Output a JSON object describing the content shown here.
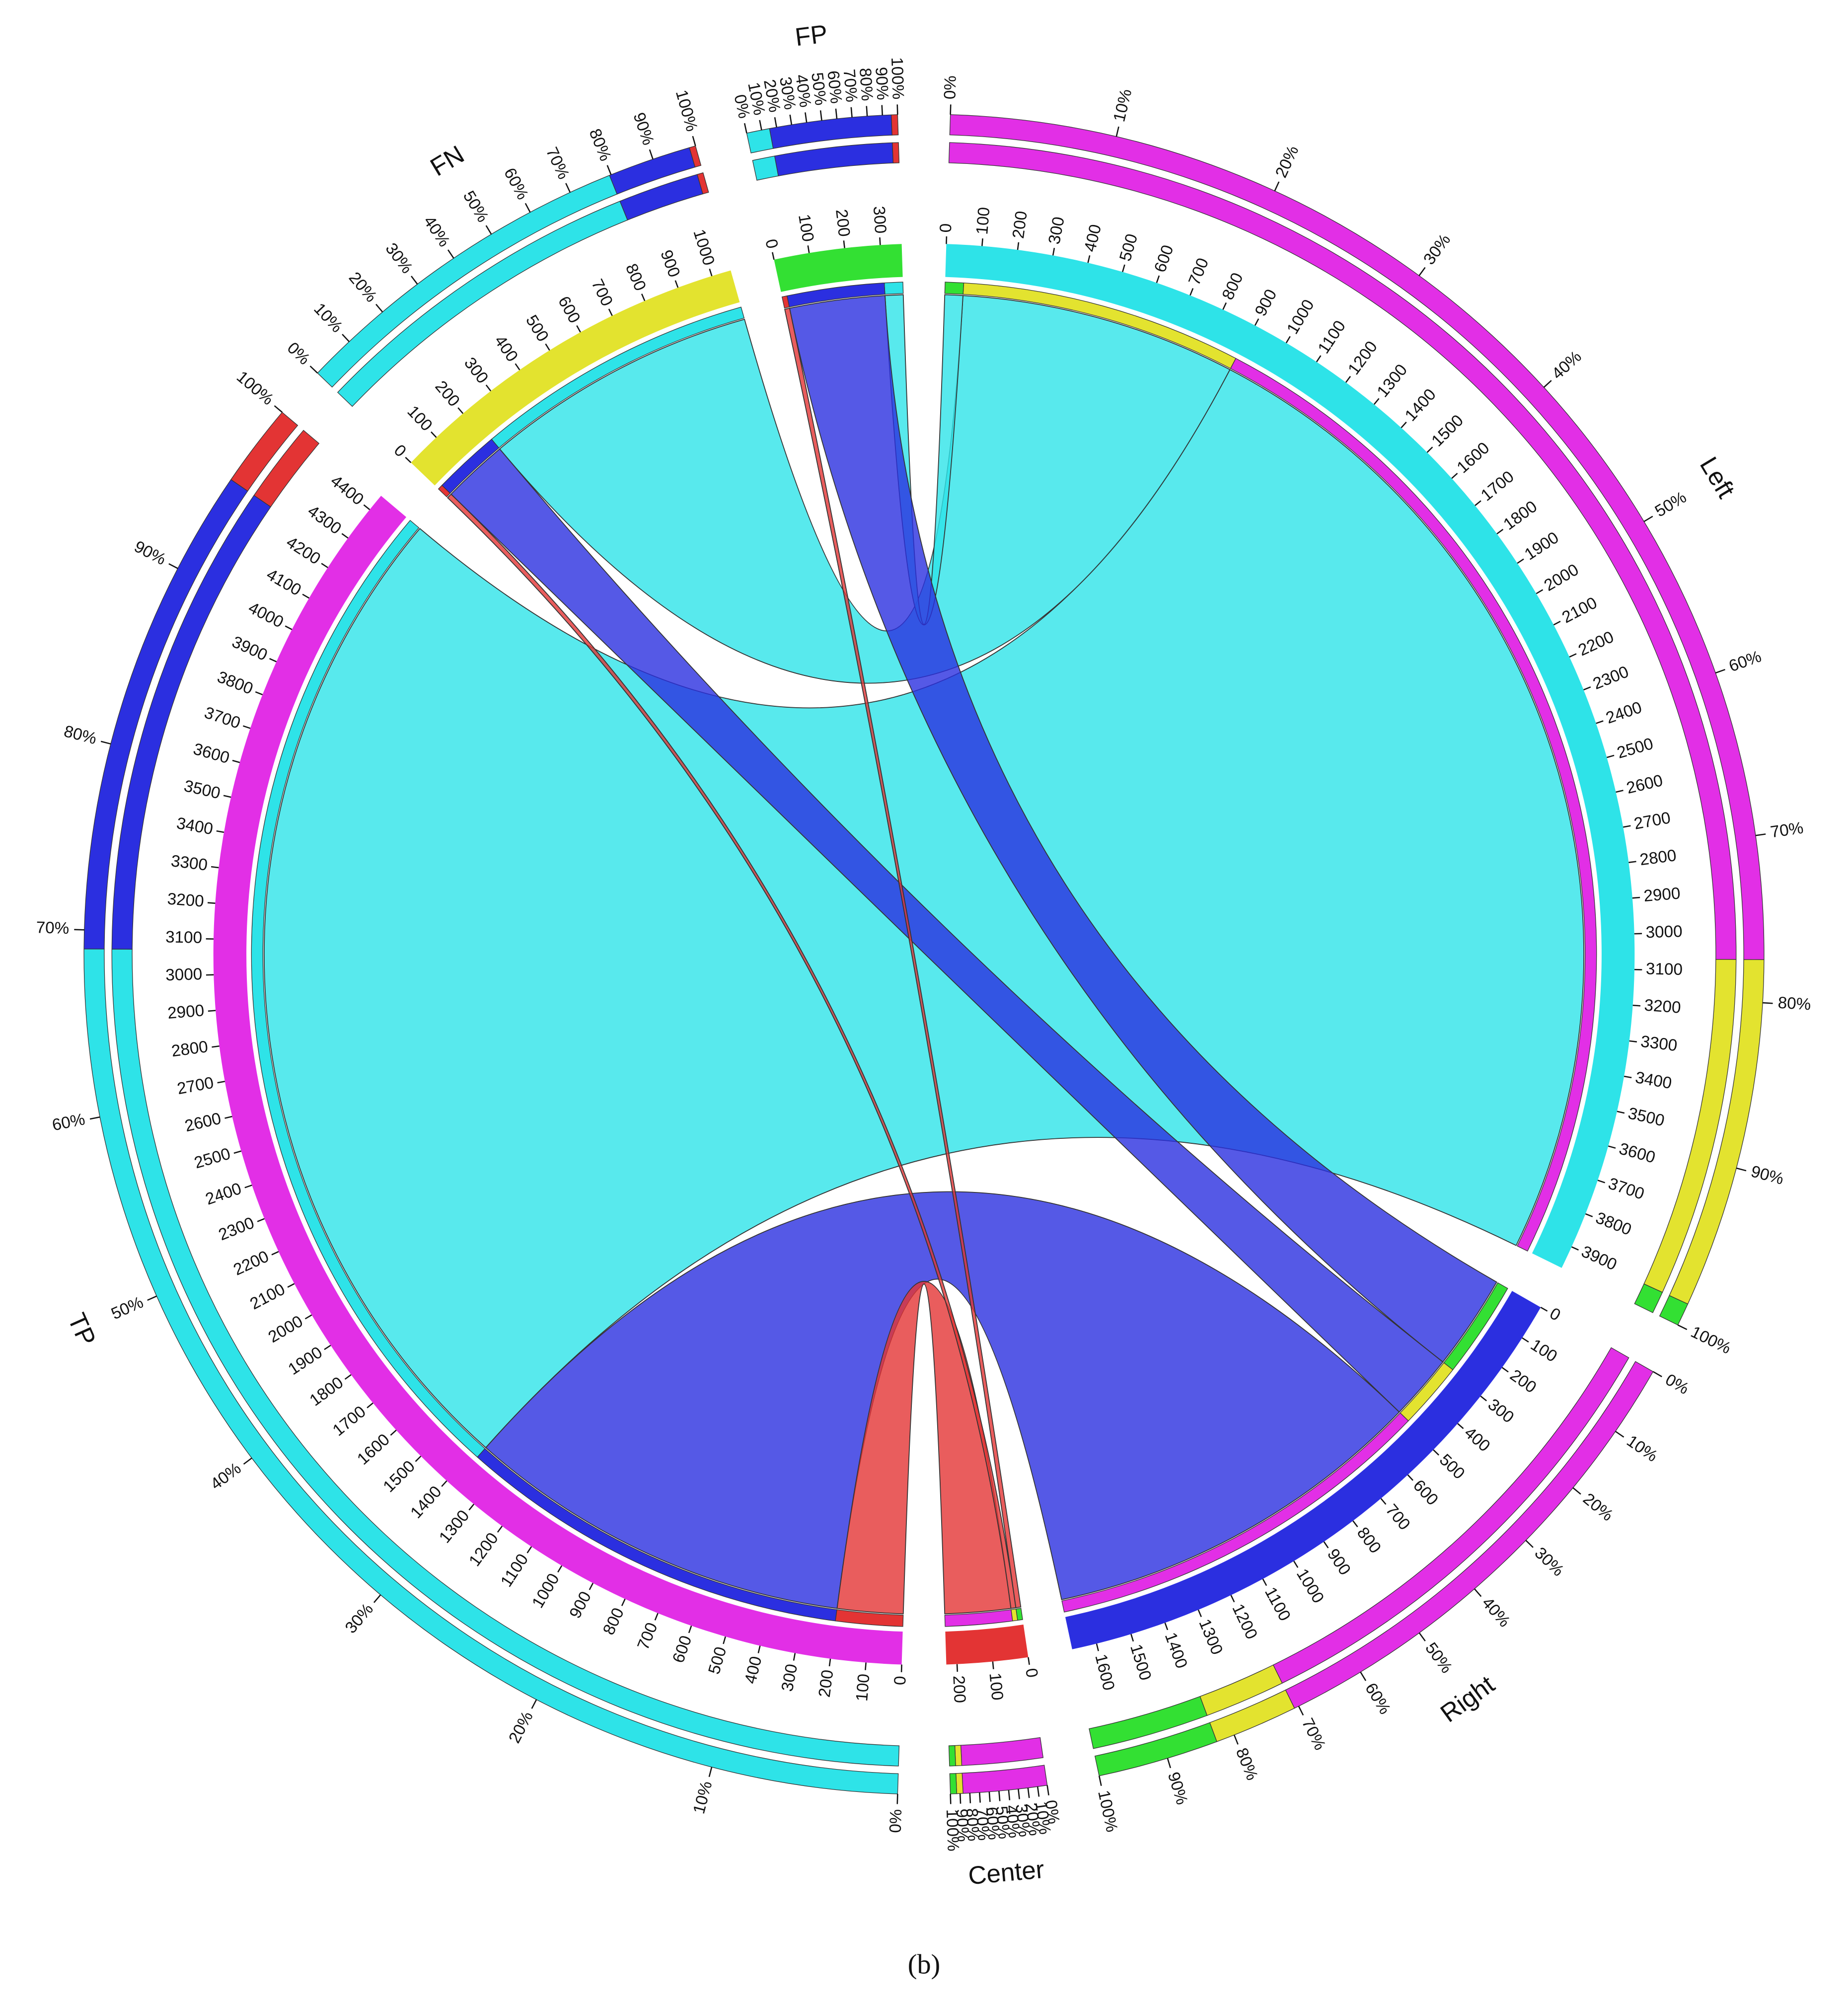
{
  "chart_data": {
    "type": "chord",
    "caption": "(b)",
    "nodes": [
      {
        "name": "Left",
        "color": "#2ee3e8",
        "ticks": [
          0,
          100,
          200,
          300,
          400,
          500,
          600,
          700,
          800,
          900,
          1000,
          1100,
          1200,
          1300,
          1400,
          1500,
          1600,
          1700,
          1800,
          1900,
          2000,
          2100,
          2200,
          2300,
          2400,
          2500,
          2600,
          2700,
          2800,
          2900,
          3000,
          3100,
          3200,
          3300,
          3400,
          3500,
          3600,
          3700,
          3800,
          3900
        ]
      },
      {
        "name": "Right",
        "color": "#2b2fe0",
        "ticks": [
          0,
          100,
          200,
          300,
          400,
          500,
          600,
          700,
          800,
          900,
          1000,
          1100,
          1200,
          1300,
          1400,
          1500,
          1600
        ]
      },
      {
        "name": "Center",
        "color": "#e33434",
        "ticks": [
          0,
          100,
          200
        ]
      },
      {
        "name": "TP",
        "color": "#e22fe6",
        "ticks": [
          0,
          100,
          200,
          300,
          400,
          500,
          600,
          700,
          800,
          900,
          1000,
          1100,
          1200,
          1300,
          1400,
          1500,
          1600,
          1700,
          1800,
          1900,
          2000,
          2100,
          2200,
          2300,
          2400,
          2500,
          2600,
          2700,
          2800,
          2900,
          3000,
          3100,
          3200,
          3300,
          3400,
          3500,
          3600,
          3700,
          3800,
          3900,
          4000,
          4100,
          4200,
          4300,
          4400
        ]
      },
      {
        "name": "FN",
        "color": "#e3e32f",
        "ticks": [
          0,
          100,
          200,
          300,
          400,
          500,
          600,
          700,
          800,
          900,
          1000
        ]
      },
      {
        "name": "FP",
        "color": "#33e033",
        "ticks": [
          0,
          100,
          200,
          300
        ]
      }
    ],
    "matrix": [
      [
        3070,
        840,
        55
      ],
      [
        1180,
        200,
        290
      ],
      [
        200,
        15,
        15
      ]
    ],
    "percent_ticks": [
      {
        "value": 0,
        "label": "0%"
      },
      {
        "value": 10,
        "label": "10%"
      },
      {
        "value": 20,
        "label": "20%"
      },
      {
        "value": 30,
        "label": "30%"
      },
      {
        "value": 40,
        "label": "40%"
      },
      {
        "value": 50,
        "label": "50%"
      },
      {
        "value": 60,
        "label": "60%"
      },
      {
        "value": 70,
        "label": "70%"
      },
      {
        "value": 80,
        "label": "80%"
      },
      {
        "value": 90,
        "label": "90%"
      },
      {
        "value": 100,
        "label": "100%"
      }
    ]
  }
}
